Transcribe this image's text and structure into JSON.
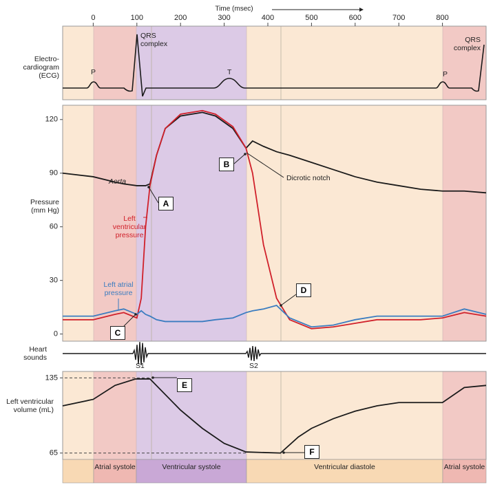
{
  "time_axis": {
    "label": "Time (msec)",
    "ticks": [
      0,
      100,
      200,
      300,
      400,
      500,
      600,
      700,
      800
    ]
  },
  "ecg": {
    "label": "Electro-cardiogram (ECG)",
    "annotations": [
      "P",
      "QRS complex",
      "T",
      "P",
      "QRS complex"
    ]
  },
  "heart_sounds": {
    "label": "Heart sounds",
    "annotations": [
      "S1",
      "S2"
    ]
  },
  "phases": [
    "Atrial systole",
    "Ventricular systole",
    "Ventricular diastole",
    "Atrial systole"
  ],
  "chart_data": [
    {
      "type": "line",
      "y_label": "Pressure (mm Hg)",
      "xlim": [
        -70,
        900
      ],
      "ylim": [
        -4,
        128
      ],
      "yticks": [
        0,
        30,
        60,
        90,
        120
      ],
      "x": [
        -70,
        0,
        50,
        70,
        100,
        110,
        120,
        130,
        145,
        165,
        200,
        250,
        280,
        320,
        350,
        365,
        390,
        420,
        450,
        500,
        550,
        600,
        650,
        700,
        750,
        800,
        850,
        900
      ],
      "series": [
        {
          "name": "Aorta",
          "color": "#1a1a1a",
          "values": [
            90,
            88,
            85,
            84,
            83,
            83,
            83,
            84,
            100,
            115,
            122,
            124,
            122,
            115,
            104,
            108,
            105,
            102,
            100,
            96,
            92,
            88,
            85,
            83,
            81,
            80,
            80,
            79
          ]
        },
        {
          "name": "Left ventricular pressure",
          "color": "#d0202a",
          "values": [
            8,
            8,
            11,
            12,
            9,
            20,
            60,
            83,
            100,
            115,
            123,
            125,
            123,
            116,
            104,
            90,
            50,
            20,
            8,
            3,
            4,
            6,
            8,
            8,
            8,
            9,
            12,
            10
          ]
        },
        {
          "name": "Left atrial pressure",
          "color": "#3a7cc0",
          "values": [
            10,
            10,
            13,
            14,
            11,
            13,
            11,
            10,
            8,
            7,
            7,
            7,
            8,
            9,
            12,
            13,
            14,
            16,
            9,
            4,
            5,
            8,
            10,
            10,
            10,
            10,
            14,
            11
          ]
        }
      ],
      "annotations": [
        "A",
        "B",
        "C",
        "D",
        "Dicrotic notch"
      ]
    },
    {
      "type": "line",
      "y_label": "Left ventricular volume (mL)",
      "xlim": [
        -70,
        900
      ],
      "ylim": [
        59,
        141
      ],
      "yticks": [
        65,
        135
      ],
      "x": [
        -70,
        0,
        50,
        97,
        130,
        200,
        250,
        300,
        350,
        429,
        470,
        500,
        550,
        600,
        650,
        700,
        800,
        850,
        900
      ],
      "series": [
        {
          "color": "#1a1a1a",
          "values": [
            109,
            115,
            128,
            134,
            134,
            105,
            88,
            74,
            66,
            65,
            80,
            88,
            97,
            104,
            109,
            112,
            112,
            126,
            128
          ]
        }
      ],
      "annotations": [
        "E",
        "F"
      ]
    }
  ]
}
